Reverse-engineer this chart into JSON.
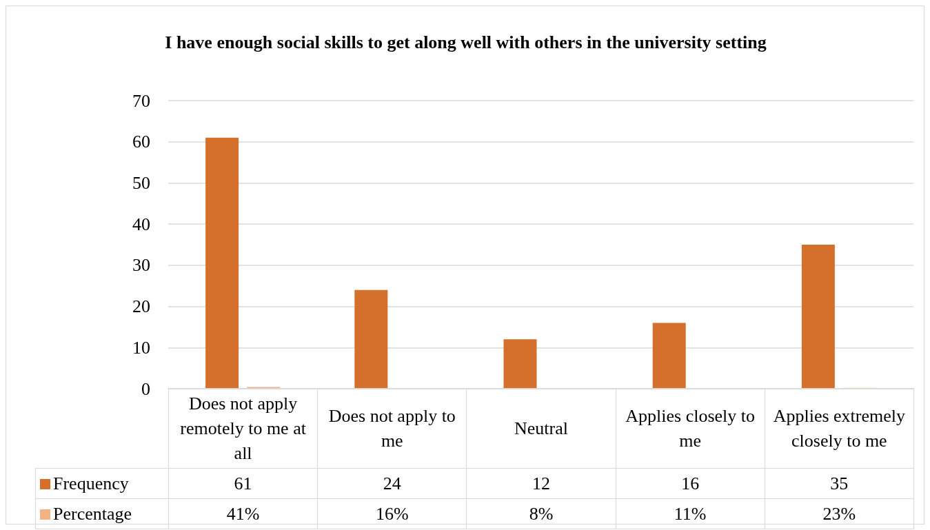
{
  "chart_data": {
    "type": "bar",
    "title": "I have enough social skills to get along well with others in the university setting",
    "categories": [
      "Does not apply remotely to me at all",
      "Does not apply to me",
      "Neutral",
      "Applies closely to me",
      "Applies extremely closely to me"
    ],
    "series": [
      {
        "name": "Frequency",
        "color": "#d4702c",
        "values": [
          61,
          24,
          12,
          16,
          35
        ],
        "value_labels": [
          "61",
          "24",
          "12",
          "16",
          "35"
        ]
      },
      {
        "name": "Percentage",
        "color": "#f4b183",
        "values": [
          0.41,
          0.16,
          0.08,
          0.11,
          0.23
        ],
        "value_labels": [
          "41%",
          "16%",
          "8%",
          "11%",
          "23%"
        ]
      }
    ],
    "ylim": [
      0,
      70
    ],
    "yticks": [
      0,
      10,
      20,
      30,
      40,
      50,
      60,
      70
    ],
    "grid": "y",
    "legend": "bottom"
  }
}
